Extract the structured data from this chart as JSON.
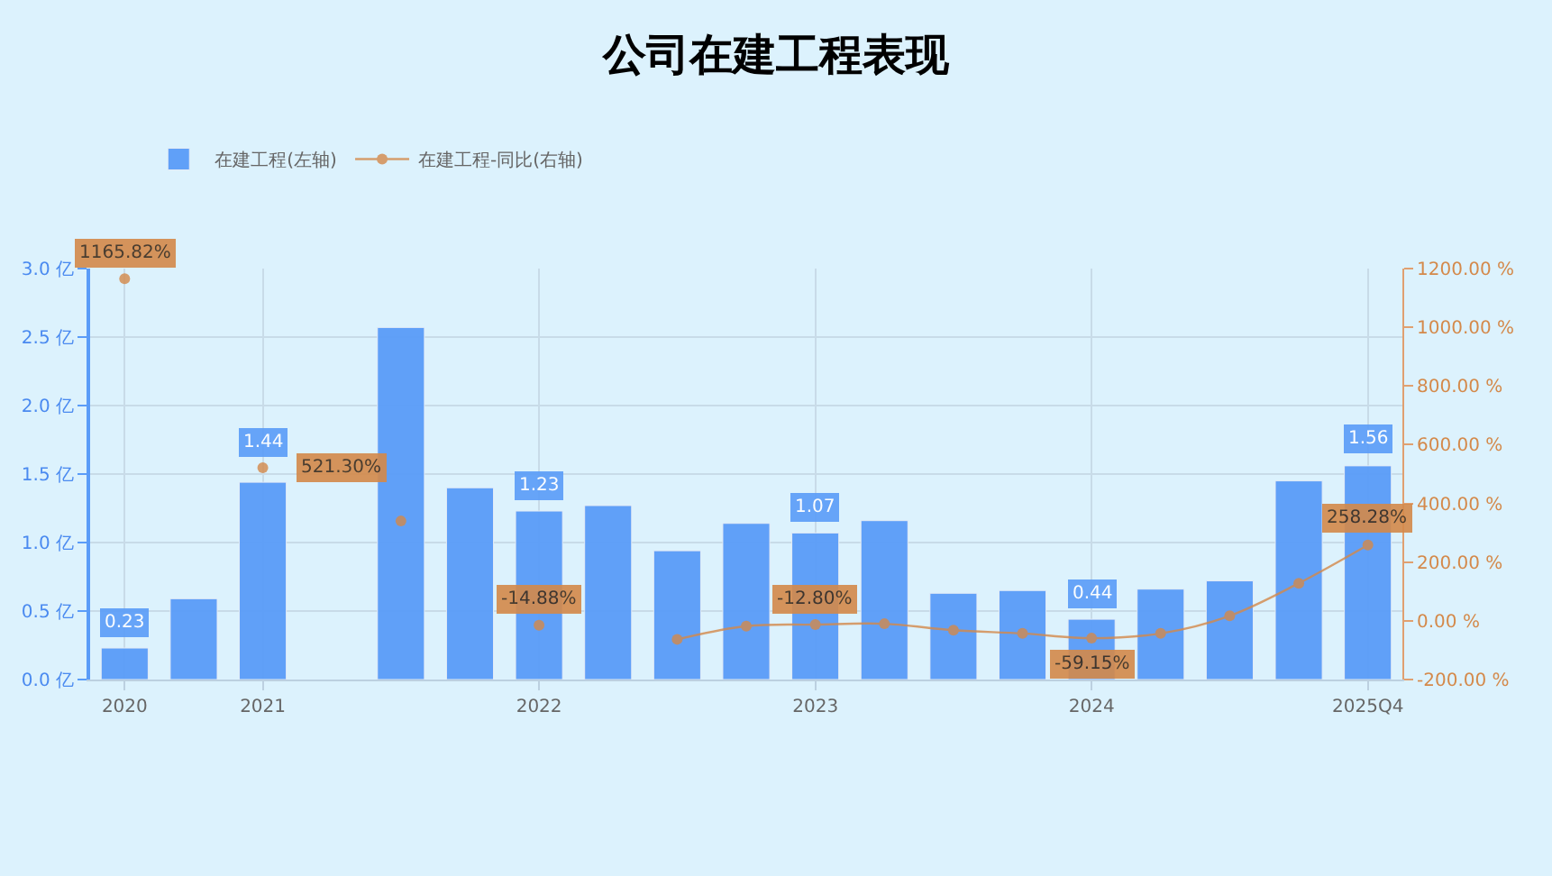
{
  "chart_data": {
    "type": "bar",
    "title": "公司在建工程表现",
    "categories": [
      "2020",
      null,
      "2021",
      null,
      null,
      null,
      "2022",
      null,
      null,
      null,
      "2023",
      null,
      null,
      null,
      "2024",
      null,
      null,
      null,
      "2025Q4"
    ],
    "series": [
      {
        "name": "在建工程(左轴)",
        "color": "#5a9cf8",
        "values": [
          0.23,
          0.59,
          1.44,
          null,
          2.57,
          1.4,
          1.23,
          1.27,
          0.94,
          1.14,
          1.07,
          1.16,
          0.63,
          0.65,
          0.44,
          0.66,
          0.72,
          1.45,
          1.56
        ],
        "value_labels": [
          "0.23",
          null,
          "1.44",
          null,
          null,
          null,
          "1.23",
          null,
          null,
          null,
          "1.07",
          null,
          null,
          null,
          "0.44",
          null,
          null,
          null,
          "1.56"
        ]
      },
      {
        "name": "在建工程-同比(右轴)",
        "type": "line",
        "axis": "y2",
        "color": "#d4894a",
        "marker": "circle",
        "values": [
          1165.82,
          null,
          521.3,
          null,
          340,
          null,
          -14.88,
          null,
          -63,
          -18,
          -12.8,
          -10,
          -32,
          -43,
          -59.15,
          -43,
          17,
          128,
          258.28
        ],
        "value_labels": [
          "1165.82%",
          null,
          "521.30%",
          null,
          null,
          null,
          "-14.88%",
          null,
          null,
          null,
          "-12.80%",
          null,
          null,
          null,
          "-59.15%",
          null,
          null,
          null,
          "258.28%"
        ]
      }
    ],
    "ylim": [
      0,
      3
    ],
    "yticks": [
      {
        "value": 0,
        "label": "0.0 亿"
      },
      {
        "value": 0.5,
        "label": "0.5 亿"
      },
      {
        "value": 1,
        "label": "1.0 亿"
      },
      {
        "value": 1.5,
        "label": "1.5 亿"
      },
      {
        "value": 2,
        "label": "2.0 亿"
      },
      {
        "value": 2.5,
        "label": "2.5 亿"
      },
      {
        "value": 3,
        "label": "3.0 亿"
      }
    ],
    "y2lim": [
      -200,
      1200
    ],
    "y2ticks": [
      {
        "value": -200,
        "label": "-200.00 %"
      },
      {
        "value": 0,
        "label": "0.00 %"
      },
      {
        "value": 200,
        "label": "200.00 %"
      },
      {
        "value": 400,
        "label": "400.00 %"
      },
      {
        "value": 600,
        "label": "600.00 %"
      },
      {
        "value": 800,
        "label": "800.00 %"
      },
      {
        "value": 1000,
        "label": "1000.00 %"
      },
      {
        "value": 1200,
        "label": "1200.00 %"
      }
    ],
    "grid": true,
    "legend": "top left"
  }
}
